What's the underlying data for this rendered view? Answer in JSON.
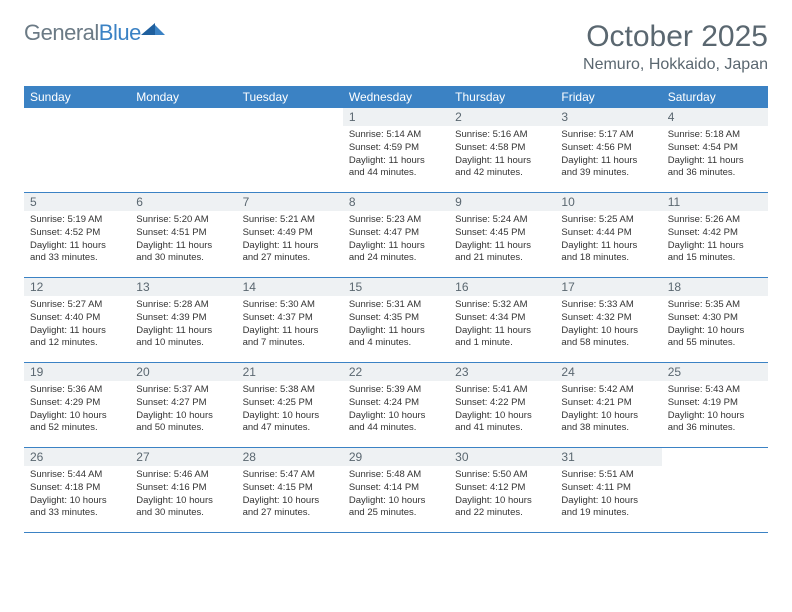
{
  "brand": {
    "name1": "General",
    "name2": "Blue"
  },
  "title": "October 2025",
  "location": "Nemuro, Hokkaido, Japan",
  "colors": {
    "header_bg": "#3b82c4",
    "header_text": "#ffffff",
    "daynum_bg": "#eef1f3",
    "text_muted": "#5a6770",
    "text": "#333333",
    "rule": "#3b82c4",
    "page_bg": "#ffffff"
  },
  "typography": {
    "title_fontsize": 30,
    "location_fontsize": 16,
    "weekday_fontsize": 12,
    "daynum_fontsize": 12,
    "body_fontsize": 9.5
  },
  "weekdays": [
    "Sunday",
    "Monday",
    "Tuesday",
    "Wednesday",
    "Thursday",
    "Friday",
    "Saturday"
  ],
  "layout": {
    "columns": 7,
    "rows": 5,
    "first_weekday_index": 3
  },
  "days": [
    {
      "n": 1,
      "sunrise": "5:14 AM",
      "sunset": "4:59 PM",
      "daylight": "11 hours and 44 minutes."
    },
    {
      "n": 2,
      "sunrise": "5:16 AM",
      "sunset": "4:58 PM",
      "daylight": "11 hours and 42 minutes."
    },
    {
      "n": 3,
      "sunrise": "5:17 AM",
      "sunset": "4:56 PM",
      "daylight": "11 hours and 39 minutes."
    },
    {
      "n": 4,
      "sunrise": "5:18 AM",
      "sunset": "4:54 PM",
      "daylight": "11 hours and 36 minutes."
    },
    {
      "n": 5,
      "sunrise": "5:19 AM",
      "sunset": "4:52 PM",
      "daylight": "11 hours and 33 minutes."
    },
    {
      "n": 6,
      "sunrise": "5:20 AM",
      "sunset": "4:51 PM",
      "daylight": "11 hours and 30 minutes."
    },
    {
      "n": 7,
      "sunrise": "5:21 AM",
      "sunset": "4:49 PM",
      "daylight": "11 hours and 27 minutes."
    },
    {
      "n": 8,
      "sunrise": "5:23 AM",
      "sunset": "4:47 PM",
      "daylight": "11 hours and 24 minutes."
    },
    {
      "n": 9,
      "sunrise": "5:24 AM",
      "sunset": "4:45 PM",
      "daylight": "11 hours and 21 minutes."
    },
    {
      "n": 10,
      "sunrise": "5:25 AM",
      "sunset": "4:44 PM",
      "daylight": "11 hours and 18 minutes."
    },
    {
      "n": 11,
      "sunrise": "5:26 AM",
      "sunset": "4:42 PM",
      "daylight": "11 hours and 15 minutes."
    },
    {
      "n": 12,
      "sunrise": "5:27 AM",
      "sunset": "4:40 PM",
      "daylight": "11 hours and 12 minutes."
    },
    {
      "n": 13,
      "sunrise": "5:28 AM",
      "sunset": "4:39 PM",
      "daylight": "11 hours and 10 minutes."
    },
    {
      "n": 14,
      "sunrise": "5:30 AM",
      "sunset": "4:37 PM",
      "daylight": "11 hours and 7 minutes."
    },
    {
      "n": 15,
      "sunrise": "5:31 AM",
      "sunset": "4:35 PM",
      "daylight": "11 hours and 4 minutes."
    },
    {
      "n": 16,
      "sunrise": "5:32 AM",
      "sunset": "4:34 PM",
      "daylight": "11 hours and 1 minute."
    },
    {
      "n": 17,
      "sunrise": "5:33 AM",
      "sunset": "4:32 PM",
      "daylight": "10 hours and 58 minutes."
    },
    {
      "n": 18,
      "sunrise": "5:35 AM",
      "sunset": "4:30 PM",
      "daylight": "10 hours and 55 minutes."
    },
    {
      "n": 19,
      "sunrise": "5:36 AM",
      "sunset": "4:29 PM",
      "daylight": "10 hours and 52 minutes."
    },
    {
      "n": 20,
      "sunrise": "5:37 AM",
      "sunset": "4:27 PM",
      "daylight": "10 hours and 50 minutes."
    },
    {
      "n": 21,
      "sunrise": "5:38 AM",
      "sunset": "4:25 PM",
      "daylight": "10 hours and 47 minutes."
    },
    {
      "n": 22,
      "sunrise": "5:39 AM",
      "sunset": "4:24 PM",
      "daylight": "10 hours and 44 minutes."
    },
    {
      "n": 23,
      "sunrise": "5:41 AM",
      "sunset": "4:22 PM",
      "daylight": "10 hours and 41 minutes."
    },
    {
      "n": 24,
      "sunrise": "5:42 AM",
      "sunset": "4:21 PM",
      "daylight": "10 hours and 38 minutes."
    },
    {
      "n": 25,
      "sunrise": "5:43 AM",
      "sunset": "4:19 PM",
      "daylight": "10 hours and 36 minutes."
    },
    {
      "n": 26,
      "sunrise": "5:44 AM",
      "sunset": "4:18 PM",
      "daylight": "10 hours and 33 minutes."
    },
    {
      "n": 27,
      "sunrise": "5:46 AM",
      "sunset": "4:16 PM",
      "daylight": "10 hours and 30 minutes."
    },
    {
      "n": 28,
      "sunrise": "5:47 AM",
      "sunset": "4:15 PM",
      "daylight": "10 hours and 27 minutes."
    },
    {
      "n": 29,
      "sunrise": "5:48 AM",
      "sunset": "4:14 PM",
      "daylight": "10 hours and 25 minutes."
    },
    {
      "n": 30,
      "sunrise": "5:50 AM",
      "sunset": "4:12 PM",
      "daylight": "10 hours and 22 minutes."
    },
    {
      "n": 31,
      "sunrise": "5:51 AM",
      "sunset": "4:11 PM",
      "daylight": "10 hours and 19 minutes."
    }
  ],
  "labels": {
    "sunrise": "Sunrise:",
    "sunset": "Sunset:",
    "daylight": "Daylight:"
  }
}
